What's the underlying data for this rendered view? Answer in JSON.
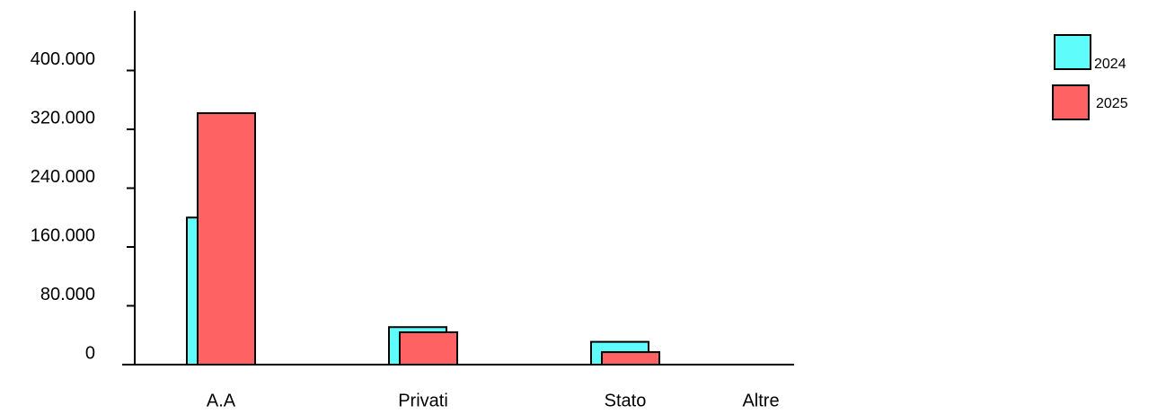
{
  "chart_data": {
    "type": "bar",
    "categories": [
      "A.A",
      "Privati",
      "Stato",
      "Altre"
    ],
    "series": [
      {
        "name": "2024",
        "values": [
          200000,
          51000,
          31000,
          0
        ],
        "color": "#5ffcfc"
      },
      {
        "name": "2025",
        "values": [
          342000,
          44000,
          17000,
          0
        ],
        "color": "#fe6262"
      }
    ],
    "y_ticks": [
      {
        "value": 0,
        "label": "0"
      },
      {
        "value": 80000,
        "label": "80.000"
      },
      {
        "value": 160000,
        "label": "160.000"
      },
      {
        "value": 240000,
        "label": "240.000"
      },
      {
        "value": 320000,
        "label": "320.000"
      },
      {
        "value": 400000,
        "label": "400.000"
      }
    ],
    "ylim": [
      0,
      480000
    ],
    "grid": false,
    "legend_position": "top-right"
  }
}
